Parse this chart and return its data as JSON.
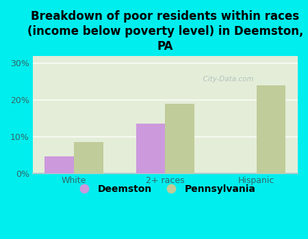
{
  "categories": [
    "White",
    "2+ races",
    "Hispanic"
  ],
  "deemston_values": [
    4.5,
    13.5,
    0.0
  ],
  "pennsylvania_values": [
    8.5,
    19.0,
    24.0
  ],
  "deemston_color": "#cc99dd",
  "pennsylvania_color": "#c0cc99",
  "title": "Breakdown of poor residents within races\n(income below poverty level) in Deemston,\nPA",
  "ylim": [
    0,
    32
  ],
  "yticks": [
    0,
    10,
    20,
    30
  ],
  "yticklabels": [
    "0%",
    "10%",
    "20%",
    "30%"
  ],
  "background_outer": "#00eeee",
  "background_plot": "#e4edd8",
  "bar_width": 0.32,
  "legend_labels": [
    "Deemston",
    "Pennsylvania"
  ],
  "watermark": "  City-Data.com",
  "grid_color": "#ffffff",
  "title_fontsize": 12,
  "tick_fontsize": 9,
  "legend_fontsize": 10,
  "title_color": "#000000",
  "tick_label_color": "#336666",
  "axis_color": "#aacccc"
}
